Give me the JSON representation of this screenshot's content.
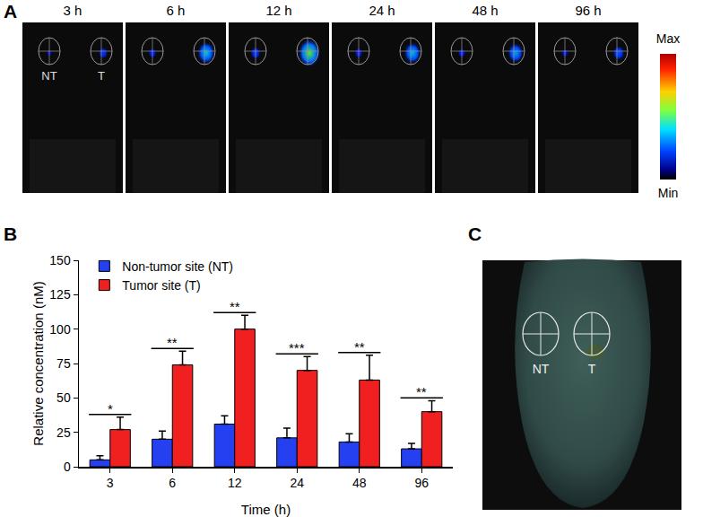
{
  "chart_data": {
    "type": "bar",
    "categories": [
      "3",
      "6",
      "12",
      "24",
      "48",
      "96"
    ],
    "x_label": "Time (h)",
    "y_label": "Relative concentration (nM)",
    "series": [
      {
        "name": "Non-tumor site (NT)",
        "color": "#2440f0",
        "values": [
          5,
          20,
          31,
          21,
          18,
          13
        ],
        "error": [
          3,
          6,
          6,
          7,
          6,
          4
        ]
      },
      {
        "name": "Tumor site (T)",
        "color": "#f02020",
        "values": [
          27,
          74,
          100,
          70,
          63,
          40
        ],
        "error": [
          9,
          10,
          10,
          10,
          18,
          8
        ]
      }
    ],
    "ylim": [
      0,
      150
    ],
    "yticks": [
      0,
      25,
      50,
      75,
      100,
      125,
      150
    ],
    "grid": false,
    "legend": "top-left",
    "annotations": [
      {
        "x": "3",
        "text": "*"
      },
      {
        "x": "6",
        "text": "**"
      },
      {
        "x": "12",
        "text": "**"
      },
      {
        "x": "24",
        "text": "***"
      },
      {
        "x": "48",
        "text": "**"
      },
      {
        "x": "96",
        "text": "**"
      }
    ]
  },
  "figure": {
    "panel_a": {
      "label": "A",
      "times": [
        "3 h",
        "6 h",
        "12 h",
        "24 h",
        "48 h",
        "96 h"
      ],
      "site_labels": [
        "NT",
        "T"
      ],
      "scale_max": "Max",
      "scale_min": "Min"
    },
    "panel_b": {
      "label": "B"
    },
    "panel_c": {
      "label": "C",
      "site_labels": [
        "NT",
        "T"
      ]
    }
  }
}
